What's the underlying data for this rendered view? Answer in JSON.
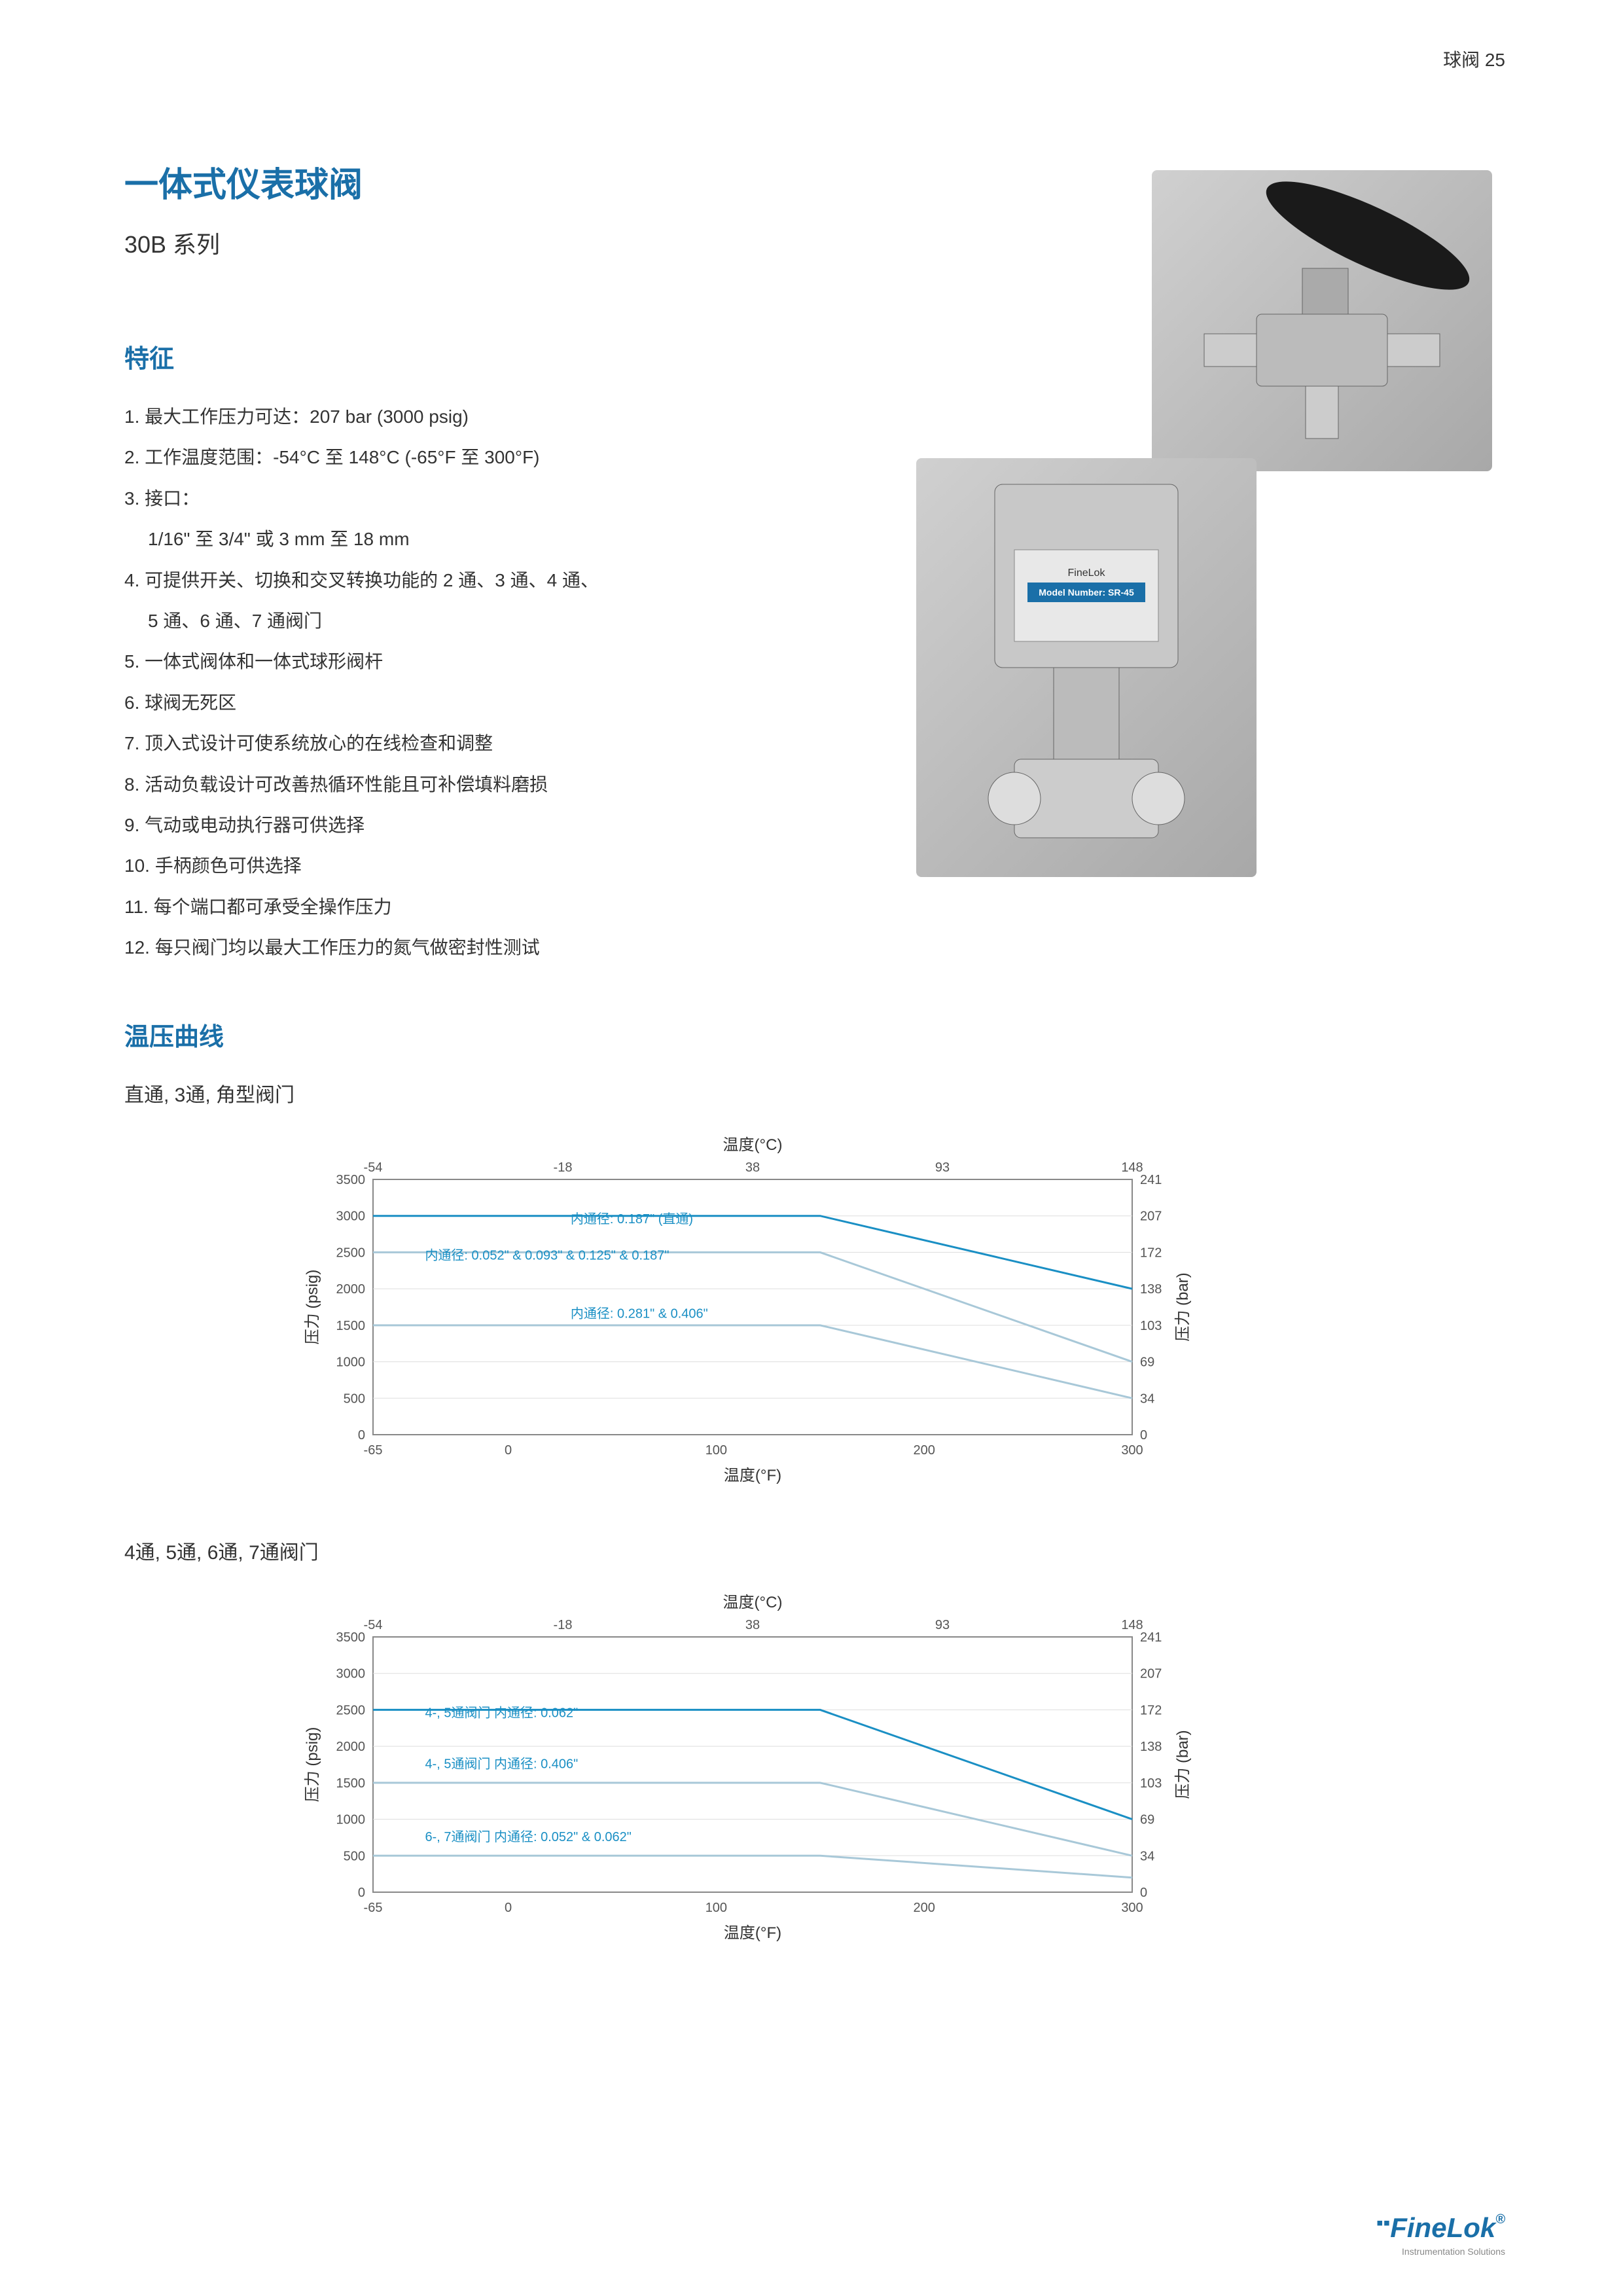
{
  "page_header": "球阀  25",
  "title": "一体式仪表球阀",
  "subtitle": "30B 系列",
  "features_heading": "特征",
  "features": [
    "最大工作压力可达：207 bar (3000 psig)",
    "工作温度范围：-54°C 至 148°C (-65°F 至 300°F)",
    "接口：",
    "可提供开关、切换和交叉转换功能的 2 通、3 通、4 通、",
    "一体式阀体和一体式球形阀杆",
    "球阀无死区",
    "顶入式设计可使系统放心的在线检查和调整",
    "活动负载设计可改善热循环性能且可补偿填料磨损",
    "气动或电动执行器可供选择",
    "手柄颜色可供选择",
    "每个端口都可承受全操作压力",
    "每只阀门均以最大工作压力的氮气做密封性测试"
  ],
  "feature3_sub": "1/16\" 至 3/4\" 或 3 mm 至 18 mm",
  "feature4_sub": "5 通、6 通、7 通阀门",
  "temp_curve_heading": "温压曲线",
  "chart1_label": "直通, 3通, 角型阀门",
  "chart2_label": "4通, 5通, 6通, 7通阀门",
  "chart1": {
    "type": "line",
    "top_axis_label": "温度(°C)",
    "bottom_axis_label": "温度(°F)",
    "left_axis_label": "压力 (psig)",
    "right_axis_label": "压力 (bar)",
    "xlim_f": [
      -65,
      300
    ],
    "ylim_psig": [
      0,
      3500
    ],
    "x_ticks_c": [
      -54,
      -18,
      38,
      93,
      148
    ],
    "x_ticks_f": [
      -65,
      0,
      100,
      200,
      300
    ],
    "y_ticks_psig": [
      0,
      500,
      1000,
      1500,
      2000,
      2500,
      3000,
      3500
    ],
    "y_ticks_bar": [
      0,
      34,
      69,
      103,
      138,
      172,
      207,
      241
    ],
    "background_color": "#ffffff",
    "grid_color": "#dddddd",
    "axis_color": "#888888",
    "series": [
      {
        "label": "内通径: 0.187\" (直通)",
        "color": "#1a8fc4",
        "points_f_psig": [
          [
            -65,
            3000
          ],
          [
            150,
            3000
          ],
          [
            300,
            2000
          ]
        ],
        "label_x": 30,
        "label_y": 2900
      },
      {
        "label": "内通径: 0.052\" & 0.093\" &  0.125\" & 0.187\"",
        "color": "#a8c8d8",
        "points_f_psig": [
          [
            -65,
            2500
          ],
          [
            150,
            2500
          ],
          [
            300,
            1000
          ]
        ],
        "label_x": -40,
        "label_y": 2400
      },
      {
        "label": "内通径: 0.281\" & 0.406\"",
        "color": "#a8c8d8",
        "points_f_psig": [
          [
            -65,
            1500
          ],
          [
            150,
            1500
          ],
          [
            300,
            500
          ]
        ],
        "label_x": 30,
        "label_y": 1600
      }
    ]
  },
  "chart2": {
    "type": "line",
    "top_axis_label": "温度(°C)",
    "bottom_axis_label": "温度(°F)",
    "left_axis_label": "压力 (psig)",
    "right_axis_label": "压力 (bar)",
    "xlim_f": [
      -65,
      300
    ],
    "ylim_psig": [
      0,
      3500
    ],
    "x_ticks_c": [
      -54,
      -18,
      38,
      93,
      148
    ],
    "x_ticks_f": [
      -65,
      0,
      100,
      200,
      300
    ],
    "y_ticks_psig": [
      0,
      500,
      1000,
      1500,
      2000,
      2500,
      3000,
      3500
    ],
    "y_ticks_bar": [
      0,
      34,
      69,
      103,
      138,
      172,
      207,
      241
    ],
    "background_color": "#ffffff",
    "grid_color": "#dddddd",
    "axis_color": "#888888",
    "series": [
      {
        "label": "4-, 5通阀门 内通径: 0.062\"",
        "color": "#1a8fc4",
        "points_f_psig": [
          [
            -65,
            2500
          ],
          [
            150,
            2500
          ],
          [
            300,
            1000
          ]
        ],
        "label_x": -40,
        "label_y": 2400
      },
      {
        "label": "4-, 5通阀门 内通径: 0.406\"",
        "color": "#a8c8d8",
        "points_f_psig": [
          [
            -65,
            1500
          ],
          [
            150,
            1500
          ],
          [
            300,
            500
          ]
        ],
        "label_x": -40,
        "label_y": 1700
      },
      {
        "label": "6-, 7通阀门 内通径: 0.052\" & 0.062\"",
        "color": "#a8c8d8",
        "points_f_psig": [
          [
            -65,
            500
          ],
          [
            150,
            500
          ],
          [
            300,
            200
          ]
        ],
        "label_x": -40,
        "label_y": 700
      }
    ]
  },
  "footer_brand": "FineLok",
  "footer_brand_sub": "Instrumentation Solutions"
}
